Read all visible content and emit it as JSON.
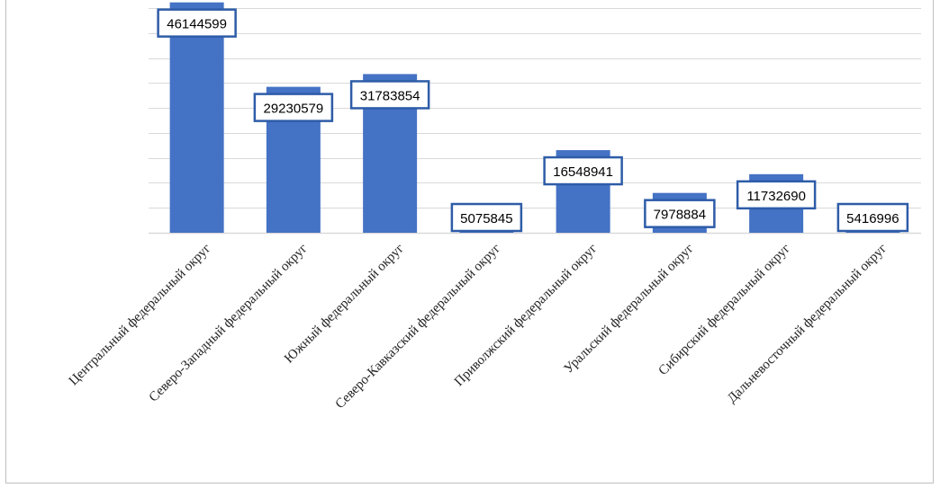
{
  "chart_data": {
    "type": "bar",
    "categories": [
      "Центральный федеральный округ",
      "Северо-Западный федеральный округ",
      "Южный федеральный округ",
      "Северо-Кавказский федеральный округ",
      "Приволжский федеральный округ",
      "Уральский федеральный округ",
      "Сибирский федеральный округ",
      "Дальневосточный федеральный округ"
    ],
    "values": [
      46144599,
      29230579,
      31783854,
      5075845,
      16548941,
      7978884,
      11732690,
      5416996
    ],
    "data_labels": [
      "46144599",
      "29230579",
      "31783854",
      "5075845",
      "16548941",
      "7978884",
      "11732690",
      "5416996"
    ],
    "title": "",
    "xlabel": "",
    "ylabel": "",
    "ylim": [
      0,
      45000000
    ],
    "y_gridline_step": 5000000,
    "grid": true,
    "legend": "none",
    "bar_color": "#4472c4",
    "label_border_color": "#2e5ca8"
  }
}
